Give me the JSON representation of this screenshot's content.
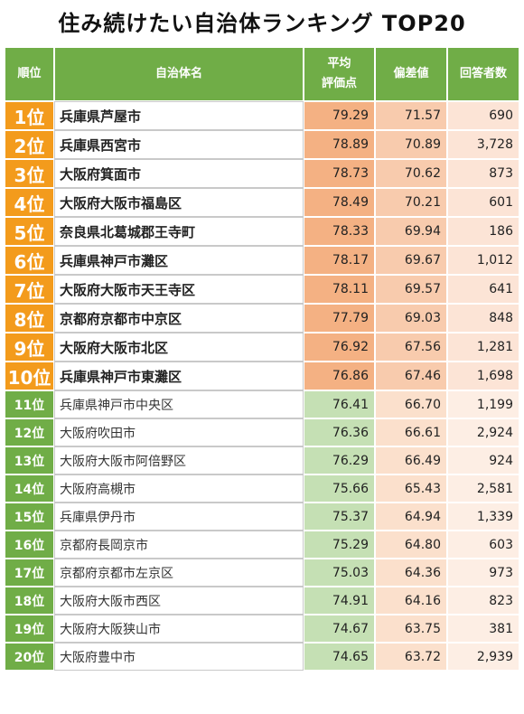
{
  "title": "住み続けたい自治体ランキング TOP20",
  "headers": {
    "rank": "順位",
    "name": "自治体名",
    "avg_line1": "平均",
    "avg_line2": "評価点",
    "dev": "偏差値",
    "count": "回答者数"
  },
  "rows": [
    {
      "rank": "1位",
      "name": "兵庫県芦屋市",
      "avg": "79.29",
      "dev": "71.57",
      "count": "690"
    },
    {
      "rank": "2位",
      "name": "兵庫県西宮市",
      "avg": "78.89",
      "dev": "70.89",
      "count": "3,728"
    },
    {
      "rank": "3位",
      "name": "大阪府箕面市",
      "avg": "78.73",
      "dev": "70.62",
      "count": "873"
    },
    {
      "rank": "4位",
      "name": "大阪府大阪市福島区",
      "avg": "78.49",
      "dev": "70.21",
      "count": "601"
    },
    {
      "rank": "5位",
      "name": "奈良県北葛城郡王寺町",
      "avg": "78.33",
      "dev": "69.94",
      "count": "186"
    },
    {
      "rank": "6位",
      "name": "兵庫県神戸市灘区",
      "avg": "78.17",
      "dev": "69.67",
      "count": "1,012"
    },
    {
      "rank": "7位",
      "name": "大阪府大阪市天王寺区",
      "avg": "78.11",
      "dev": "69.57",
      "count": "641"
    },
    {
      "rank": "8位",
      "name": "京都府京都市中京区",
      "avg": "77.79",
      "dev": "69.03",
      "count": "848"
    },
    {
      "rank": "9位",
      "name": "大阪府大阪市北区",
      "avg": "76.92",
      "dev": "67.56",
      "count": "1,281"
    },
    {
      "rank": "10位",
      "name": "兵庫県神戸市東灘区",
      "avg": "76.86",
      "dev": "67.46",
      "count": "1,698"
    },
    {
      "rank": "11位",
      "name": "兵庫県神戸市中央区",
      "avg": "76.41",
      "dev": "66.70",
      "count": "1,199"
    },
    {
      "rank": "12位",
      "name": "大阪府吹田市",
      "avg": "76.36",
      "dev": "66.61",
      "count": "2,924"
    },
    {
      "rank": "13位",
      "name": "大阪府大阪市阿倍野区",
      "avg": "76.29",
      "dev": "66.49",
      "count": "924"
    },
    {
      "rank": "14位",
      "name": "大阪府高槻市",
      "avg": "75.66",
      "dev": "65.43",
      "count": "2,581"
    },
    {
      "rank": "15位",
      "name": "兵庫県伊丹市",
      "avg": "75.37",
      "dev": "64.94",
      "count": "1,339"
    },
    {
      "rank": "16位",
      "name": "京都府長岡京市",
      "avg": "75.29",
      "dev": "64.80",
      "count": "603"
    },
    {
      "rank": "17位",
      "name": "京都府京都市左京区",
      "avg": "75.03",
      "dev": "64.36",
      "count": "973"
    },
    {
      "rank": "18位",
      "name": "大阪府大阪市西区",
      "avg": "74.91",
      "dev": "64.16",
      "count": "823"
    },
    {
      "rank": "19位",
      "name": "大阪府大阪狭山市",
      "avg": "74.67",
      "dev": "63.75",
      "count": "381"
    },
    {
      "rank": "20位",
      "name": "大阪府豊中市",
      "avg": "74.65",
      "dev": "63.72",
      "count": "2,939"
    }
  ],
  "colors": {
    "header_green": "#70ad47",
    "top_rank_orange": "#f39b1c",
    "top_avg": "#f4b183",
    "low_avg": "#c5e0b4"
  }
}
